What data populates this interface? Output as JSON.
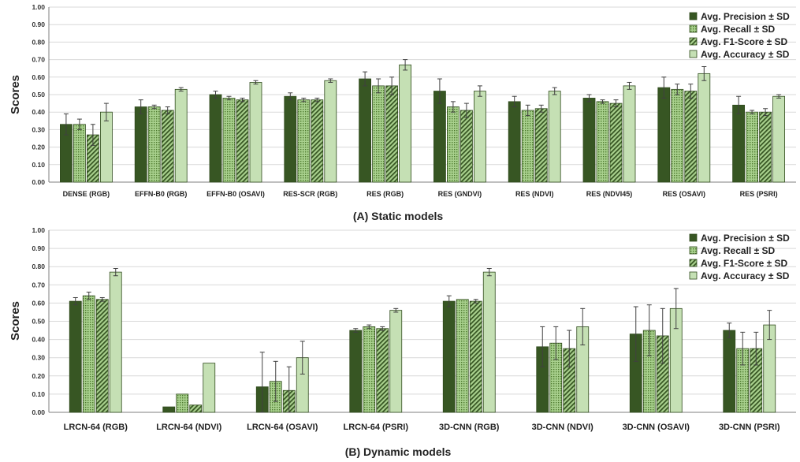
{
  "colors": {
    "precision": "#375623",
    "recall": "#8FBC5F",
    "f1": "#548235",
    "accuracy": "#C5E0B4",
    "grid": "#d9d9d9",
    "axis": "#7f7f7f"
  },
  "chart_data": [
    {
      "type": "bar",
      "title": "(A) Static models",
      "ylabel": "Scores",
      "xlabel": "",
      "ylim": [
        0,
        1.0
      ],
      "yticks": [
        "0.00",
        "0.10",
        "0.20",
        "0.30",
        "0.40",
        "0.50",
        "0.60",
        "0.70",
        "0.80",
        "0.90",
        "1.00"
      ],
      "grid": true,
      "legend_position": "top-right",
      "categories": [
        "DENSE (RGB)",
        "EFFN-B0 (RGB)",
        "EFFN-B0 (OSAVI)",
        "RES-SCR (RGB)",
        "RES (RGB)",
        "RES (GNDVI)",
        "RES (NDVI)",
        "RES (NDVI45)",
        "RES (OSAVI)",
        "RES (PSRI)"
      ],
      "series": [
        {
          "name": "Avg. Precision ± SD",
          "values": [
            0.33,
            0.43,
            0.5,
            0.49,
            0.59,
            0.52,
            0.46,
            0.48,
            0.54,
            0.44
          ],
          "errors": [
            0.06,
            0.04,
            0.02,
            0.02,
            0.04,
            0.07,
            0.03,
            0.02,
            0.06,
            0.05
          ]
        },
        {
          "name": "Avg. Recall ± SD",
          "values": [
            0.33,
            0.43,
            0.48,
            0.47,
            0.55,
            0.43,
            0.41,
            0.46,
            0.53,
            0.4
          ],
          "errors": [
            0.03,
            0.01,
            0.01,
            0.01,
            0.04,
            0.03,
            0.03,
            0.01,
            0.03,
            0.01
          ]
        },
        {
          "name": "Avg. F1-Score ± SD",
          "values": [
            0.27,
            0.41,
            0.47,
            0.47,
            0.55,
            0.41,
            0.42,
            0.45,
            0.52,
            0.4
          ],
          "errors": [
            0.06,
            0.02,
            0.01,
            0.01,
            0.05,
            0.04,
            0.02,
            0.02,
            0.04,
            0.02
          ]
        },
        {
          "name": "Avg. Accuracy ± SD",
          "values": [
            0.4,
            0.53,
            0.57,
            0.58,
            0.67,
            0.52,
            0.52,
            0.55,
            0.62,
            0.49
          ],
          "errors": [
            0.05,
            0.01,
            0.01,
            0.01,
            0.03,
            0.03,
            0.02,
            0.02,
            0.04,
            0.01
          ]
        }
      ]
    },
    {
      "type": "bar",
      "title": "(B) Dynamic models",
      "ylabel": "Scores",
      "xlabel": "",
      "ylim": [
        0,
        1.0
      ],
      "yticks": [
        "0.00",
        "0.10",
        "0.20",
        "0.30",
        "0.40",
        "0.50",
        "0.60",
        "0.70",
        "0.80",
        "0.90",
        "1.00"
      ],
      "grid": true,
      "legend_position": "top-right",
      "categories": [
        "LRCN-64 (RGB)",
        "LRCN-64 (NDVI)",
        "LRCN-64 (OSAVI)",
        "LRCN-64 (PSRI)",
        "3D-CNN (RGB)",
        "3D-CNN (NDVI)",
        "3D-CNN (OSAVI)",
        "3D-CNN (PSRI)"
      ],
      "series": [
        {
          "name": "Avg. Precision ± SD",
          "values": [
            0.61,
            0.03,
            0.14,
            0.45,
            0.61,
            0.36,
            0.43,
            0.45
          ],
          "errors": [
            0.02,
            0.0,
            0.19,
            0.01,
            0.03,
            0.11,
            0.15,
            0.04
          ]
        },
        {
          "name": "Avg. Recall ± SD",
          "values": [
            0.64,
            0.1,
            0.17,
            0.47,
            0.62,
            0.38,
            0.45,
            0.35
          ],
          "errors": [
            0.02,
            0.0,
            0.11,
            0.01,
            0.0,
            0.09,
            0.14,
            0.09
          ]
        },
        {
          "name": "Avg. F1-Score ± SD",
          "values": [
            0.62,
            0.04,
            0.12,
            0.46,
            0.61,
            0.35,
            0.42,
            0.35
          ],
          "errors": [
            0.01,
            0.0,
            0.13,
            0.01,
            0.01,
            0.1,
            0.15,
            0.09
          ]
        },
        {
          "name": "Avg. Accuracy ± SD",
          "values": [
            0.77,
            0.27,
            0.3,
            0.56,
            0.77,
            0.47,
            0.57,
            0.48
          ],
          "errors": [
            0.02,
            0.0,
            0.09,
            0.01,
            0.02,
            0.1,
            0.11,
            0.08
          ]
        }
      ]
    }
  ]
}
